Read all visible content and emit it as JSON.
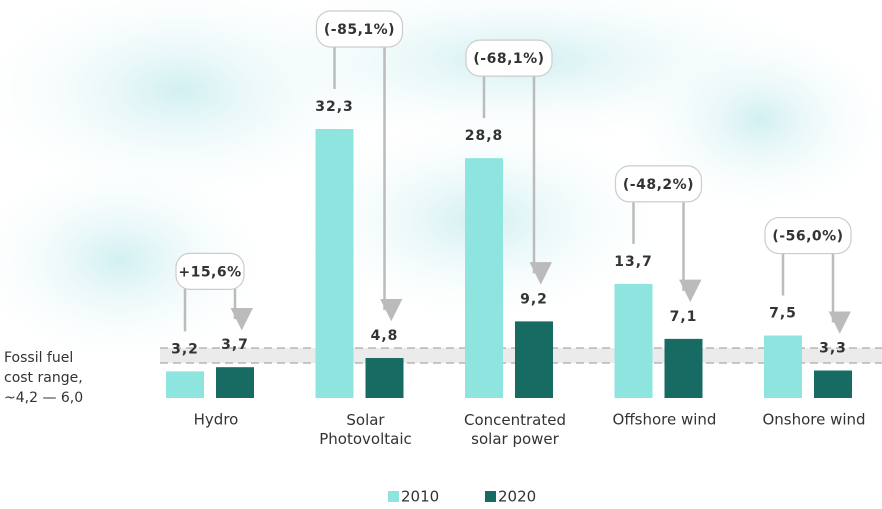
{
  "chart_data": {
    "type": "bar",
    "categories": [
      "Hydro",
      "Solar\nPhotovoltaic",
      "Concentrated\nsolar power",
      "Offshore wind",
      "Onshore wind"
    ],
    "series": [
      {
        "name": "2010",
        "color": "#8ee4df",
        "values": [
          3.2,
          32.3,
          28.8,
          13.7,
          7.5
        ],
        "value_labels": [
          "3,2",
          "32,3",
          "28,8",
          "13,7",
          "7,5"
        ]
      },
      {
        "name": "2020",
        "color": "#186b63",
        "values": [
          3.7,
          4.8,
          9.2,
          7.1,
          3.3
        ],
        "value_labels": [
          "3,7",
          "4,8",
          "9,2",
          "7,1",
          "3,3"
        ]
      }
    ],
    "change_labels": [
      "+15,6%",
      "(-85,1%)",
      "(-68,1%)",
      "(-48,2%)",
      "(-56,0%)"
    ],
    "reference_band": {
      "label": "Fossil fuel\ncost range,\n~4,2 — 6,0",
      "low": 4.2,
      "high": 6.0
    },
    "legend": "bottom"
  }
}
